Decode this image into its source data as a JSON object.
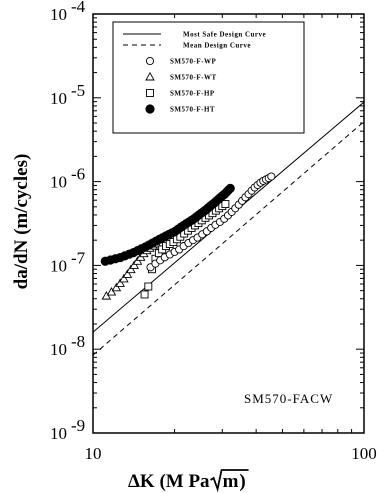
{
  "chart_data": {
    "type": "scatter",
    "xlabel": "ΔK (M Pa√m)",
    "ylabel": "da/dN  (m/cycles)",
    "xscale": "log",
    "yscale": "log",
    "xlim": [
      10,
      100
    ],
    "ylim": [
      1e-09,
      0.0001
    ],
    "x_ticks": [
      {
        "value": 10,
        "label": "10"
      },
      {
        "value": 100,
        "label": "100"
      }
    ],
    "y_ticks": [
      {
        "value": 1e-09,
        "base": "10",
        "exp": "-9"
      },
      {
        "value": 1e-08,
        "base": "10",
        "exp": "-8"
      },
      {
        "value": 1e-07,
        "base": "10",
        "exp": "-7"
      },
      {
        "value": 1e-06,
        "base": "10",
        "exp": "-6"
      },
      {
        "value": 1e-05,
        "base": "10",
        "exp": "-5"
      },
      {
        "value": 0.0001,
        "base": "10",
        "exp": "-4"
      }
    ],
    "annotation": "SM570-FACW",
    "legend_placement": "top-left",
    "lines": [
      {
        "name": "Most Safe Design Curve",
        "style": "solid",
        "x": [
          10,
          100
        ],
        "y": [
          1.6e-08,
          8.9e-06
        ]
      },
      {
        "name": "Mean Design Curve",
        "style": "dashed",
        "x": [
          10,
          100
        ],
        "y": [
          8.5e-09,
          5.2e-06
        ]
      }
    ],
    "series": [
      {
        "name": "SM570-F-WP",
        "marker": "circle-open",
        "x": [
          16.3,
          17.0,
          17.7,
          18.4,
          19.2,
          20.0,
          20.8,
          21.6,
          22.5,
          23.4,
          24.3,
          25.3,
          26.3,
          27.3,
          28.3,
          29.4,
          30.5,
          31.5,
          32.5,
          33.5,
          34.5,
          35.5,
          36.5,
          37.5,
          38.5,
          39.5,
          40.5,
          41.5,
          42.5,
          43.5,
          44.5,
          45.5
        ],
        "y": [
          9.5e-08,
          1.05e-07,
          1.15e-07,
          1.25e-07,
          1.35e-07,
          1.45e-07,
          1.55e-07,
          1.7e-07,
          1.85e-07,
          2e-07,
          2.15e-07,
          2.35e-07,
          2.55e-07,
          2.8e-07,
          3.05e-07,
          3.3e-07,
          3.6e-07,
          3.95e-07,
          4.35e-07,
          4.8e-07,
          5.3e-07,
          5.9e-07,
          6.5e-07,
          7.1e-07,
          7.8e-07,
          8.5e-07,
          9.1e-07,
          9.7e-07,
          1.02e-06,
          1.06e-06,
          1.1e-06,
          1.15e-06
        ]
      },
      {
        "name": "SM570-F-WT",
        "marker": "triangle-open",
        "x": [
          11.2,
          11.7,
          12.2,
          12.6,
          13.0,
          13.4,
          13.8,
          14.2,
          14.6,
          15.0,
          15.4,
          15.8,
          16.2,
          16.7,
          17.2
        ],
        "y": [
          4.3e-08,
          4.8e-08,
          5.4e-08,
          6.1e-08,
          6.9e-08,
          7.8e-08,
          8.9e-08,
          1e-07,
          1.12e-07,
          1.25e-07,
          1.38e-07,
          1.5e-07,
          1.6e-07,
          1.7e-07,
          1.8e-07
        ]
      },
      {
        "name": "SM570-F-HP",
        "marker": "square-open",
        "x": [
          15.5,
          16.0,
          16.5,
          17.0,
          17.5,
          18.0,
          18.6,
          19.2,
          19.8,
          20.4,
          21.0,
          21.7,
          22.4,
          23.1,
          23.8,
          24.5,
          25.2,
          26.0,
          26.8,
          27.6,
          28.4,
          29.2,
          30.0,
          30.8
        ],
        "y": [
          4.5e-08,
          5.6e-08,
          9e-08,
          1.2e-07,
          1.4e-07,
          1.55e-07,
          1.7e-07,
          1.8e-07,
          1.9e-07,
          2.05e-07,
          2.2e-07,
          2.4e-07,
          2.6e-07,
          2.8e-07,
          3e-07,
          3.2e-07,
          3.45e-07,
          3.7e-07,
          3.95e-07,
          4.2e-07,
          4.5e-07,
          4.8e-07,
          5.1e-07,
          5.4e-07
        ]
      },
      {
        "name": "SM570-F-HT",
        "marker": "circle-filled",
        "x": [
          11.1,
          11.6,
          12.1,
          12.6,
          13.1,
          13.6,
          14.1,
          14.6,
          15.1,
          15.6,
          16.1,
          16.6,
          17.1,
          17.6,
          18.1,
          18.6,
          19.1,
          19.6,
          20.1,
          20.6,
          21.1,
          21.6,
          22.1,
          22.6,
          23.1,
          23.6,
          24.1,
          24.6,
          25.1,
          25.6,
          26.1,
          26.6,
          27.1,
          27.6,
          28.1,
          28.6,
          29.1,
          29.6,
          30.1,
          30.6,
          31.1,
          31.6,
          32.1
        ],
        "y": [
          1.12e-07,
          1.16e-07,
          1.2e-07,
          1.24e-07,
          1.3e-07,
          1.36e-07,
          1.42e-07,
          1.5e-07,
          1.58e-07,
          1.66e-07,
          1.75e-07,
          1.85e-07,
          1.95e-07,
          2.05e-07,
          2.15e-07,
          2.25e-07,
          2.35e-07,
          2.45e-07,
          2.55e-07,
          2.7e-07,
          2.85e-07,
          3e-07,
          3.15e-07,
          3.3e-07,
          3.45e-07,
          3.6e-07,
          3.8e-07,
          4e-07,
          4.2e-07,
          4.4e-07,
          4.6e-07,
          4.85e-07,
          5.1e-07,
          5.35e-07,
          5.6e-07,
          5.9e-07,
          6.2e-07,
          6.5e-07,
          6.8e-07,
          7.1e-07,
          7.5e-07,
          7.9e-07,
          8.3e-07
        ]
      }
    ]
  }
}
